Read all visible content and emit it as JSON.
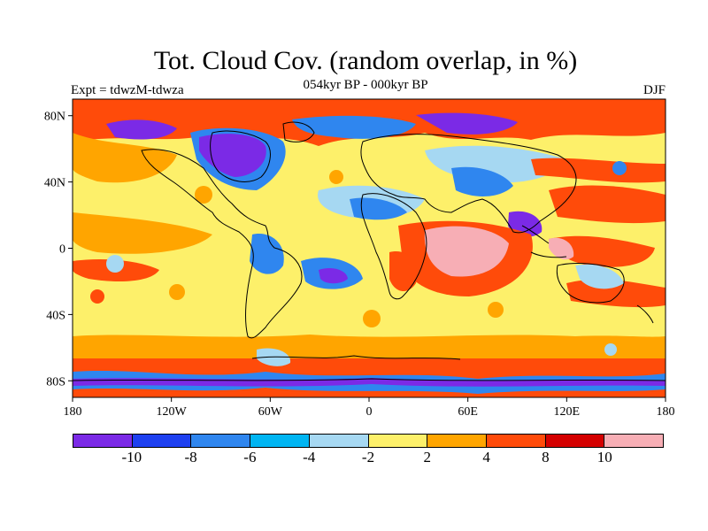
{
  "title": "Tot. Cloud Cov. (random overlap, in %)",
  "subtitle": "054kyr BP - 000kyr BP",
  "left_label": "Expt = tdwzM-tdwza",
  "right_label": "DJF",
  "lat_ticks": [
    {
      "label": "80N",
      "lat": 80
    },
    {
      "label": "40N",
      "lat": 40
    },
    {
      "label": "0",
      "lat": 0
    },
    {
      "label": "40S",
      "lat": -40
    },
    {
      "label": "80S",
      "lat": -80
    }
  ],
  "lon_ticks": [
    {
      "label": "180",
      "lon": -180
    },
    {
      "label": "120W",
      "lon": -120
    },
    {
      "label": "60W",
      "lon": -60
    },
    {
      "label": "0",
      "lon": 0
    },
    {
      "label": "60E",
      "lon": 60
    },
    {
      "label": "120E",
      "lon": 120
    },
    {
      "label": "180",
      "lon": 180
    }
  ],
  "colorbar": {
    "colors": [
      "#7b2ae6",
      "#1e40f0",
      "#2f86ef",
      "#00b5f2",
      "#a6d8f2",
      "#fdf06a",
      "#ffa500",
      "#ff4b0a",
      "#d40000",
      "#f7aeb5"
    ],
    "labels": [
      "-10",
      "-8",
      "-6",
      "-4",
      "-2",
      "2",
      "4",
      "8",
      "10"
    ]
  }
}
